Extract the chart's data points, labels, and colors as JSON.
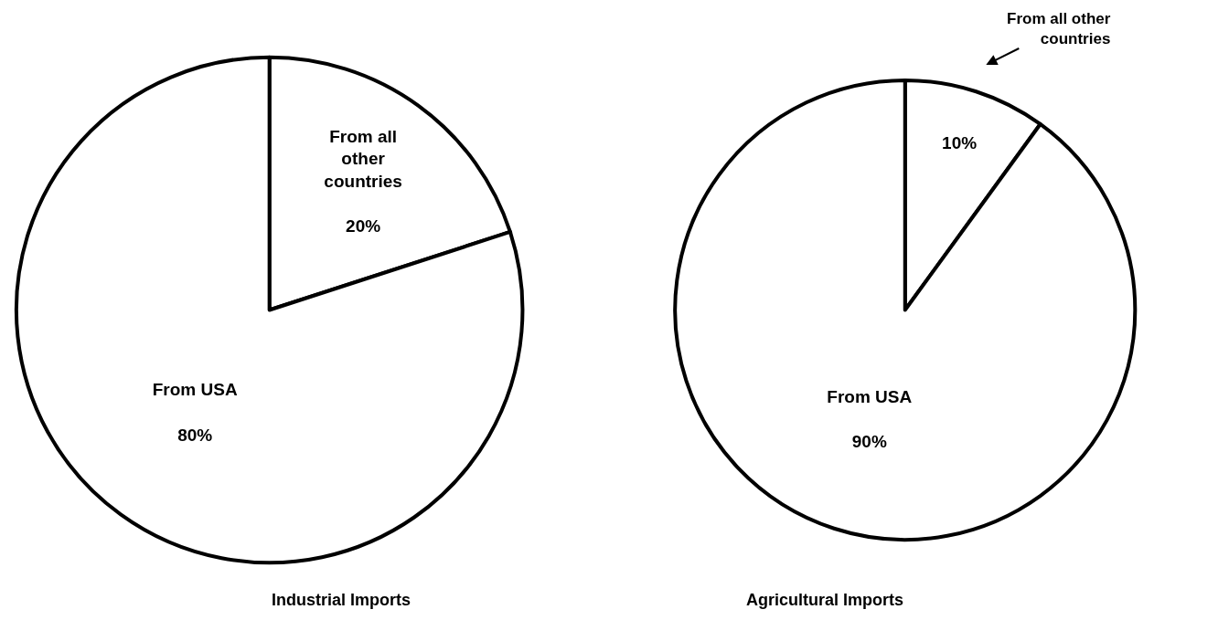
{
  "chart_data": [
    {
      "type": "pie",
      "title": "Industrial Imports",
      "categories": [
        "From all other countries",
        "From USA"
      ],
      "values": [
        20,
        80
      ],
      "colors": [
        "#ffffff",
        "#ffffff"
      ],
      "value_labels": [
        "20%",
        "80%"
      ]
    },
    {
      "type": "pie",
      "title": "Agricultural Imports",
      "categories": [
        "From all other countries",
        "From USA"
      ],
      "values": [
        10,
        90
      ],
      "colors": [
        "#ffffff",
        "#ffffff"
      ],
      "value_labels": [
        "10%",
        "90%"
      ]
    }
  ]
}
